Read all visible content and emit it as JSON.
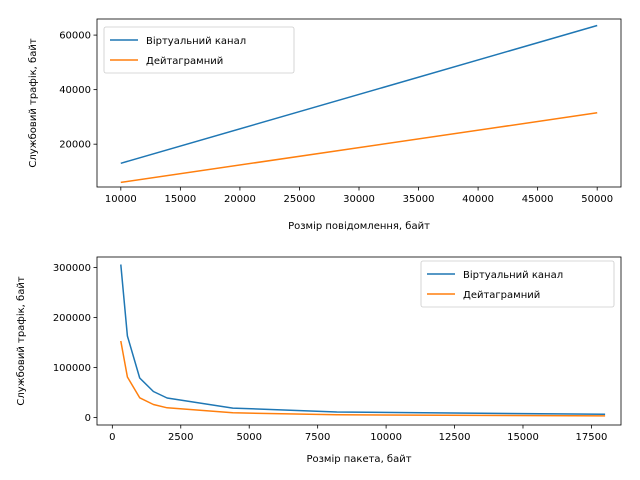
{
  "chart_data": [
    {
      "type": "line",
      "xlabel": "Розмір повідомлення, байт",
      "ylabel": "Службовий трафік, байт",
      "xlim": [
        8000,
        52000
      ],
      "ylim": [
        4300,
        65900
      ],
      "xticks": [
        10000,
        15000,
        20000,
        25000,
        30000,
        35000,
        40000,
        45000,
        50000
      ],
      "yticks": [
        20000,
        40000,
        60000
      ],
      "legend_position": "top-left",
      "grid": false,
      "series": [
        {
          "name": "Віртуальний канал",
          "color": "#1f77b4",
          "x": [
            10000,
            50000
          ],
          "y": [
            13000,
            63500
          ]
        },
        {
          "name": "Дейтаграмний",
          "color": "#ff7f0e",
          "x": [
            10000,
            50000
          ],
          "y": [
            6000,
            31500
          ]
        }
      ]
    },
    {
      "type": "line",
      "xlabel": "Розмір пакета, байт",
      "ylabel": "Службовий трафік, байт",
      "xlim": [
        -560,
        18580
      ],
      "ylim": [
        -15000,
        321000
      ],
      "xticks": [
        0,
        2500,
        5000,
        7500,
        10000,
        12500,
        15000,
        17500
      ],
      "yticks": [
        0,
        100000,
        200000,
        300000
      ],
      "legend_position": "top-right",
      "grid": false,
      "series": [
        {
          "name": "Віртуальний канал",
          "color": "#1f77b4",
          "x": [
            310,
            550,
            1000,
            1500,
            2000,
            4400,
            8200,
            18000
          ],
          "y": [
            306000,
            163000,
            79000,
            52000,
            39000,
            18700,
            11000,
            6500
          ]
        },
        {
          "name": "Дейтаграмний",
          "color": "#ff7f0e",
          "x": [
            310,
            550,
            1000,
            1500,
            2000,
            4400,
            8200,
            18000
          ],
          "y": [
            153000,
            81000,
            39500,
            26000,
            19500,
            9400,
            5500,
            3300
          ]
        }
      ]
    }
  ]
}
